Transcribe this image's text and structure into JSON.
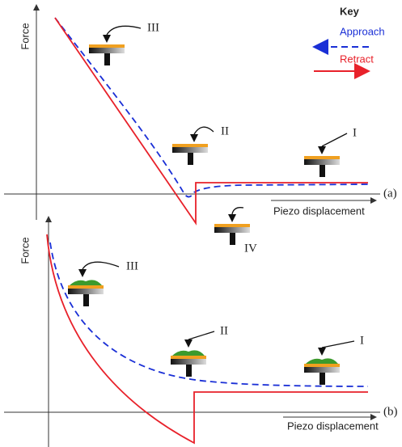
{
  "key": {
    "title": "Key",
    "approach": "Approach",
    "retract": "Retract"
  },
  "panels": [
    {
      "y_axis_label": "Force",
      "x_axis_label": "Piezo displacement",
      "panel_label": "(a)",
      "stages": [
        "III",
        "II",
        "I",
        "IV"
      ]
    },
    {
      "y_axis_label": "Force",
      "x_axis_label": "Piezo displacement",
      "panel_label": "(b)",
      "stages": [
        "III",
        "II",
        "I"
      ]
    }
  ]
}
